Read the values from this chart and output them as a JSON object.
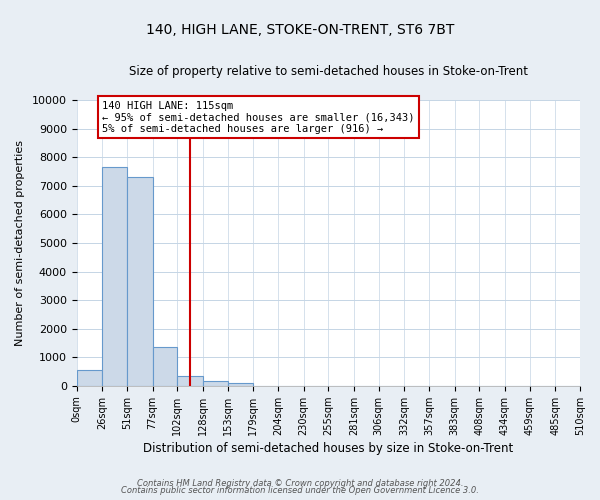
{
  "title": "140, HIGH LANE, STOKE-ON-TRENT, ST6 7BT",
  "subtitle": "Size of property relative to semi-detached houses in Stoke-on-Trent",
  "xlabel": "Distribution of semi-detached houses by size in Stoke-on-Trent",
  "ylabel": "Number of semi-detached properties",
  "bar_edges": [
    0,
    26,
    51,
    77,
    102,
    128,
    153,
    179,
    204,
    230,
    255,
    281,
    306,
    332,
    357,
    383,
    408,
    434,
    459,
    485,
    510
  ],
  "bar_heights": [
    550,
    7650,
    7300,
    1350,
    350,
    175,
    110,
    0,
    0,
    0,
    0,
    0,
    0,
    0,
    0,
    0,
    0,
    0,
    0,
    0
  ],
  "bar_color": "#ccd9e8",
  "bar_edgecolor": "#6699cc",
  "property_line_x": 115,
  "property_line_color": "#cc0000",
  "annotation_text": "140 HIGH LANE: 115sqm\n← 95% of semi-detached houses are smaller (16,343)\n5% of semi-detached houses are larger (916) →",
  "annotation_box_color": "white",
  "annotation_box_edgecolor": "#cc0000",
  "ylim": [
    0,
    10000
  ],
  "yticks": [
    0,
    1000,
    2000,
    3000,
    4000,
    5000,
    6000,
    7000,
    8000,
    9000,
    10000
  ],
  "xtick_labels": [
    "0sqm",
    "26sqm",
    "51sqm",
    "77sqm",
    "102sqm",
    "128sqm",
    "153sqm",
    "179sqm",
    "204sqm",
    "230sqm",
    "255sqm",
    "281sqm",
    "306sqm",
    "332sqm",
    "357sqm",
    "383sqm",
    "408sqm",
    "434sqm",
    "459sqm",
    "485sqm",
    "510sqm"
  ],
  "footer_line1": "Contains HM Land Registry data © Crown copyright and database right 2024.",
  "footer_line2": "Contains public sector information licensed under the Open Government Licence 3.0.",
  "bg_color": "#e8eef4",
  "plot_bg_color": "white",
  "grid_color": "#c5d5e5"
}
